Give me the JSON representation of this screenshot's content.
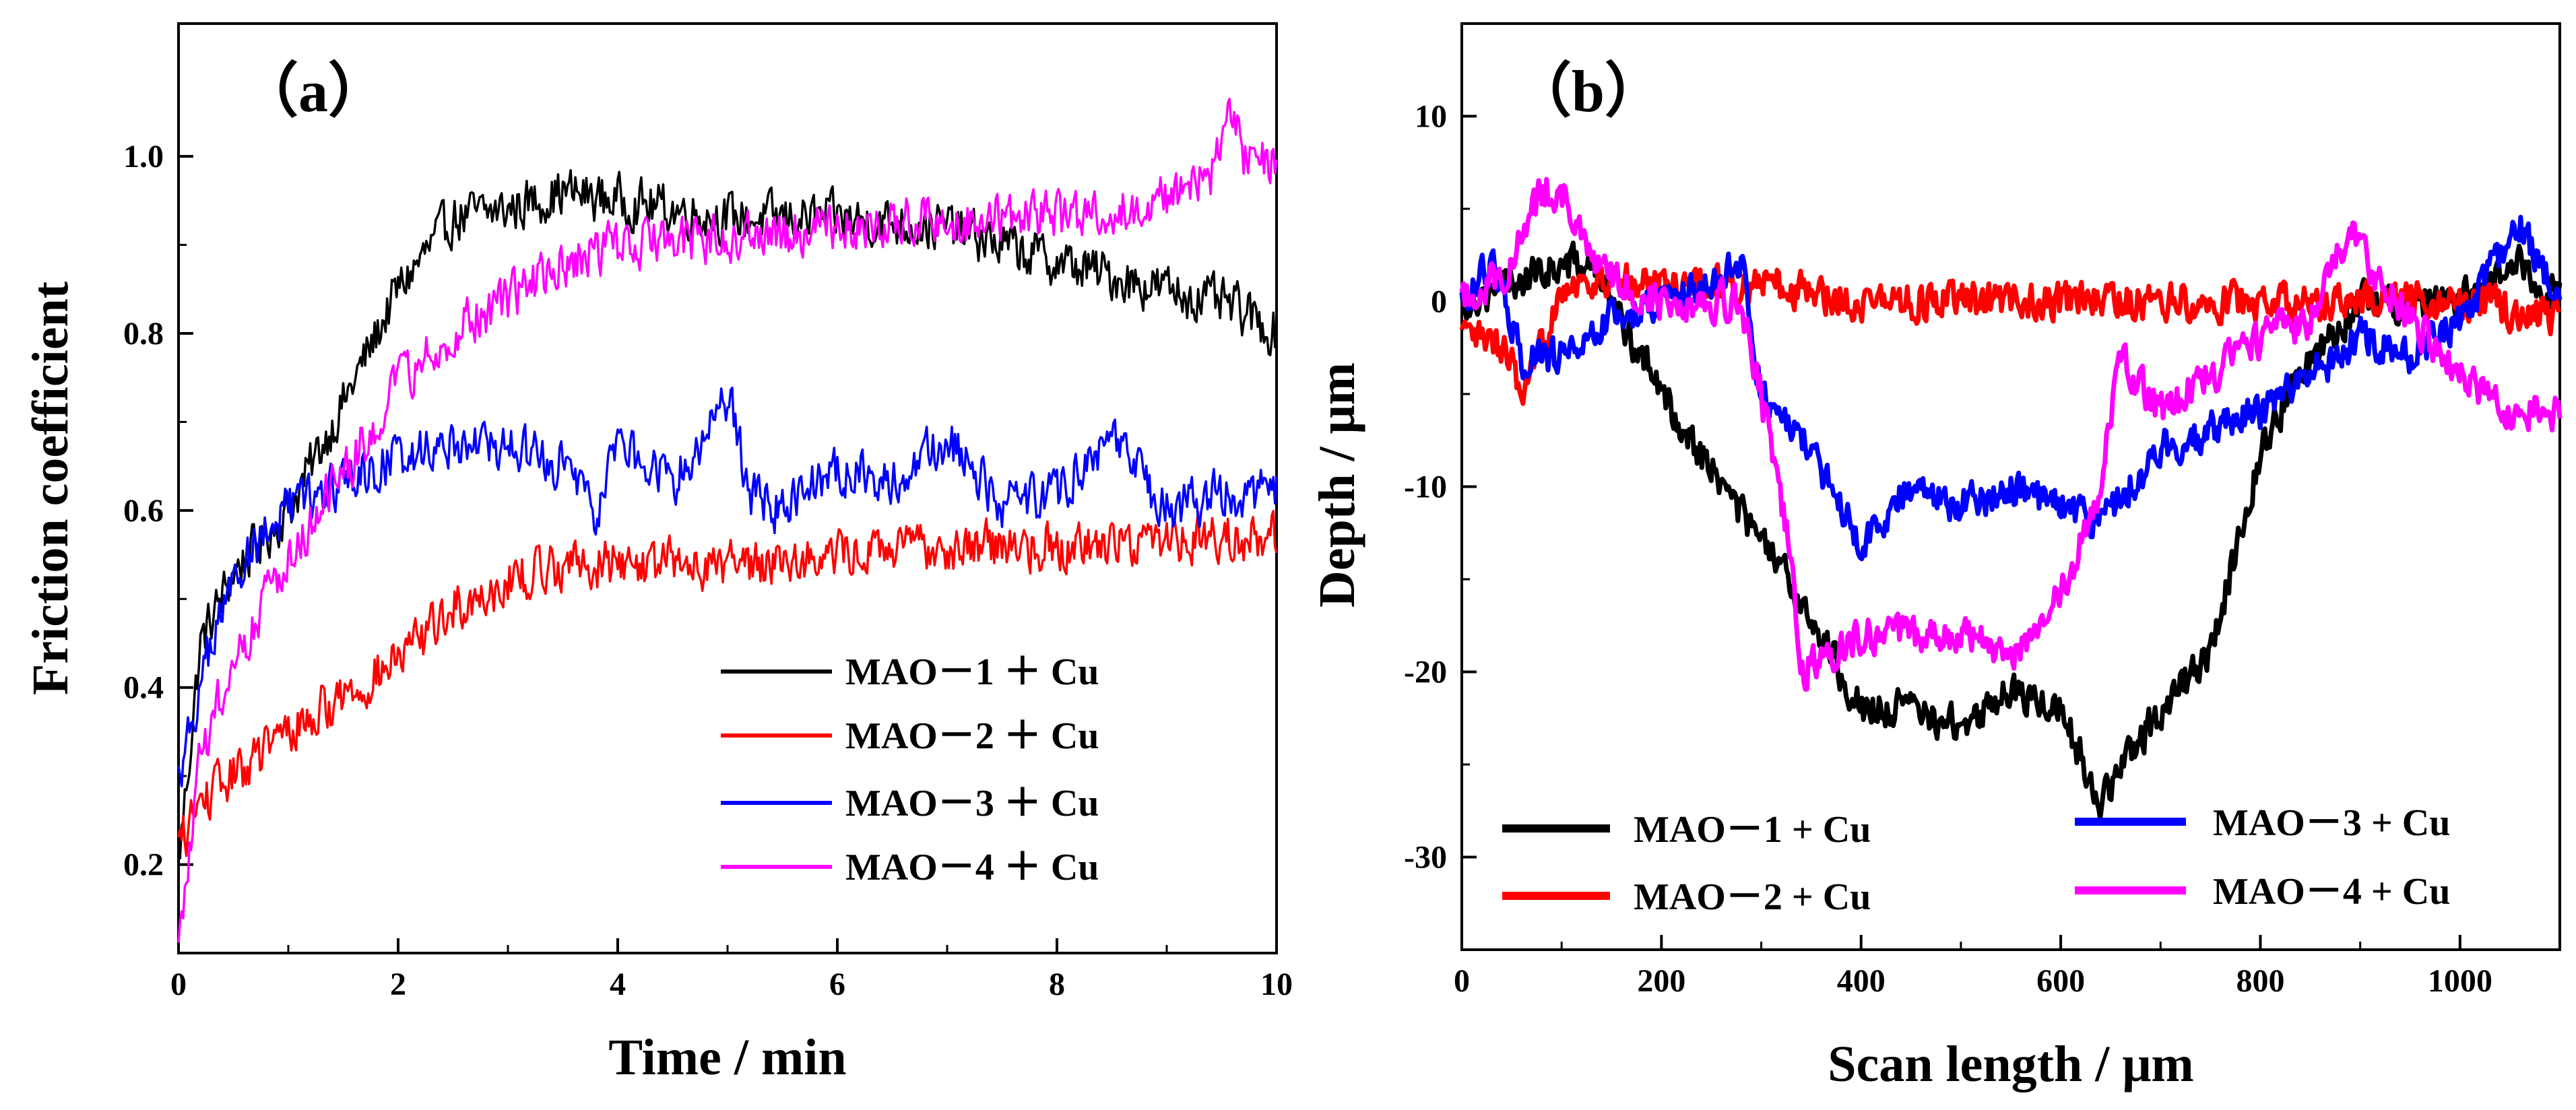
{
  "chart_data": [
    {
      "type": "line",
      "panel_label": "（a）",
      "xlabel": "Time / min",
      "ylabel": "Friction coefficient",
      "xlim": [
        0,
        10
      ],
      "ylim": [
        0.1,
        1.15
      ],
      "x_ticks": [
        0,
        2,
        4,
        6,
        8,
        10
      ],
      "y_ticks": [
        0.2,
        0.4,
        0.6,
        0.8,
        1.0
      ],
      "x_tick_labels": [
        "0",
        "2",
        "4",
        "6",
        "8",
        "10"
      ],
      "y_tick_labels": [
        "0.2",
        "0.4",
        "0.6",
        "0.8",
        "1.0"
      ],
      "legend_position": "bottom-right",
      "noise_amplitude": 0.025,
      "series": [
        {
          "name": "MAO－1 ＋ Cu",
          "color": "#000000",
          "x": [
            0,
            0.2,
            0.5,
            1.0,
            1.5,
            2.0,
            2.5,
            3.0,
            3.5,
            4.0,
            5.0,
            6.0,
            7.0,
            8.0,
            9.0,
            9.6,
            10.0
          ],
          "y": [
            0.2,
            0.45,
            0.53,
            0.6,
            0.72,
            0.85,
            0.93,
            0.94,
            0.96,
            0.95,
            0.93,
            0.93,
            0.92,
            0.88,
            0.85,
            0.83,
            0.8
          ]
        },
        {
          "name": "MAO－2 ＋ Cu",
          "color": "#ff0000",
          "x": [
            0,
            0.2,
            0.5,
            1.0,
            1.5,
            2.0,
            2.5,
            3.0,
            3.5,
            4.0,
            5.0,
            6.0,
            7.0,
            8.0,
            9.0,
            10.0
          ],
          "y": [
            0.22,
            0.27,
            0.3,
            0.35,
            0.39,
            0.43,
            0.49,
            0.52,
            0.54,
            0.54,
            0.54,
            0.55,
            0.56,
            0.56,
            0.57,
            0.57
          ]
        },
        {
          "name": "MAO－3 ＋ Cu",
          "color": "#0000ff",
          "x": [
            0,
            0.3,
            0.6,
            1.0,
            1.5,
            2.0,
            2.5,
            3.0,
            3.5,
            3.8,
            4.0,
            4.5,
            5.0,
            5.2,
            5.5,
            6.0,
            6.5,
            7.0,
            7.5,
            8.0,
            8.5,
            9.0,
            9.5,
            10.0
          ],
          "y": [
            0.3,
            0.45,
            0.55,
            0.6,
            0.63,
            0.66,
            0.68,
            0.67,
            0.65,
            0.6,
            0.68,
            0.63,
            0.73,
            0.62,
            0.6,
            0.65,
            0.63,
            0.68,
            0.61,
            0.62,
            0.68,
            0.6,
            0.62,
            0.62
          ]
        },
        {
          "name": "MAO－4 ＋ Cu",
          "color": "#ff00ff",
          "x": [
            0,
            0.2,
            0.5,
            1.0,
            1.5,
            2.0,
            2.5,
            3.0,
            3.5,
            4.0,
            5.0,
            6.0,
            7.0,
            8.0,
            9.0,
            9.4,
            9.6,
            9.7,
            10.0
          ],
          "y": [
            0.1,
            0.32,
            0.43,
            0.55,
            0.64,
            0.74,
            0.8,
            0.84,
            0.88,
            0.9,
            0.91,
            0.92,
            0.93,
            0.93,
            0.95,
            0.98,
            1.06,
            1.0,
            0.99
          ]
        }
      ]
    },
    {
      "type": "line",
      "panel_label": "（b）",
      "xlabel": "Scan length / μm",
      "ylabel": "Depth / μm",
      "xlim": [
        0,
        1100
      ],
      "ylim": [
        -35,
        15
      ],
      "x_ticks": [
        0,
        200,
        400,
        600,
        800,
        1000
      ],
      "y_ticks": [
        -30,
        -20,
        -10,
        0,
        10
      ],
      "x_tick_labels": [
        "0",
        "200",
        "400",
        "600",
        "800",
        "1000"
      ],
      "y_tick_labels": [
        "-30",
        "-20",
        "-10",
        "0",
        "10"
      ],
      "legend_position": "bottom",
      "noise_amplitude": 0.9,
      "series": [
        {
          "name": "MAO－1 + Cu",
          "color": "#000000",
          "x": [
            0,
            50,
            100,
            130,
            170,
            200,
            250,
            300,
            350,
            400,
            450,
            500,
            550,
            600,
            640,
            700,
            750,
            800,
            850,
            900,
            1000,
            1060,
            1100
          ],
          "y": [
            0,
            1,
            2,
            2,
            -2,
            -5,
            -9,
            -13,
            -17,
            -22,
            -22,
            -23,
            -21,
            -22,
            -27,
            -22,
            -19,
            -8,
            -3,
            0,
            0,
            2,
            0
          ]
        },
        {
          "name": "MAO－2 + Cu",
          "color": "#ff0000",
          "x": [
            0,
            20,
            50,
            60,
            100,
            200,
            300,
            400,
            500,
            600,
            700,
            800,
            900,
            1000,
            1100
          ],
          "y": [
            -2,
            -2,
            -3,
            -6,
            1,
            1,
            1,
            0,
            0,
            0,
            0,
            0,
            0,
            0,
            -1
          ]
        },
        {
          "name": "MAO－3 + Cu",
          "color": "#0000ff",
          "x": [
            0,
            30,
            60,
            100,
            150,
            200,
            250,
            280,
            300,
            350,
            400,
            450,
            500,
            550,
            600,
            640,
            700,
            750,
            800,
            850,
            900,
            950,
            1000,
            1060,
            1100
          ],
          "y": [
            0,
            2,
            -3,
            -3,
            -1,
            0,
            1,
            2,
            -5,
            -8,
            -13,
            -10,
            -11,
            -10,
            -11,
            -12,
            -8,
            -7,
            -6,
            -4,
            -2,
            -3,
            -1,
            4,
            0
          ]
        },
        {
          "name": "MAO－4 + Cu",
          "color": "#ff00ff",
          "x": [
            0,
            50,
            80,
            100,
            130,
            160,
            200,
            250,
            280,
            300,
            330,
            340,
            400,
            450,
            500,
            550,
            600,
            640,
            660,
            700,
            750,
            800,
            850,
            890,
            920,
            1000,
            1050,
            1100
          ],
          "y": [
            0,
            2,
            6,
            6,
            2,
            1,
            0,
            0,
            0,
            -5,
            -14,
            -20,
            -18,
            -18,
            -18,
            -19,
            -16,
            -10,
            -3,
            -6,
            -4,
            -2,
            -1,
            4,
            1,
            -4,
            -6,
            -6
          ]
        }
      ]
    }
  ]
}
